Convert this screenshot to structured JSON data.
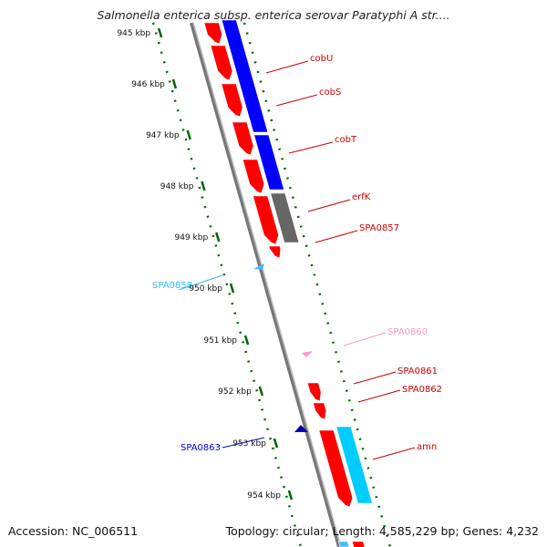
{
  "title": "Salmonella enterica subsp. enterica serovar Paratyphi A str....",
  "footer": {
    "accession": "Accession: NC_006511",
    "summary": "Topology: circular; Length: 4,585,229 bp; Genes: 4,232"
  },
  "ticks": [
    "945 kbp",
    "946 kbp",
    "947 kbp",
    "948 kbp",
    "949 kbp",
    "950 kbp",
    "951 kbp",
    "952 kbp",
    "953 kbp",
    "954 kbp"
  ],
  "genes": [
    {
      "label": "cobU",
      "color": "#cc0000"
    },
    {
      "label": "cobS",
      "color": "#cc0000"
    },
    {
      "label": "cobT",
      "color": "#cc0000"
    },
    {
      "label": "erfK",
      "color": "#cc0000"
    },
    {
      "label": "SPA0857",
      "color": "#cc0000"
    },
    {
      "label": "SPA0858",
      "color": "#33bbee"
    },
    {
      "label": "SPA0860",
      "color": "#ee99cc"
    },
    {
      "label": "SPA0861",
      "color": "#cc0000"
    },
    {
      "label": "SPA0862",
      "color": "#cc0000"
    },
    {
      "label": "amn",
      "color": "#cc0000"
    },
    {
      "label": "SPA0863",
      "color": "#0000cc"
    }
  ],
  "colors": {
    "cds_red": "#ff0000",
    "cds_blue": "#0000ff",
    "cds_gray": "#666666",
    "cds_cyan": "#00ccff",
    "cds_lightblue": "#44bbff",
    "cds_pink": "#ff99cc",
    "cds_navy": "#0000aa",
    "backbone": "#888888",
    "gc_skew": "#006600"
  }
}
